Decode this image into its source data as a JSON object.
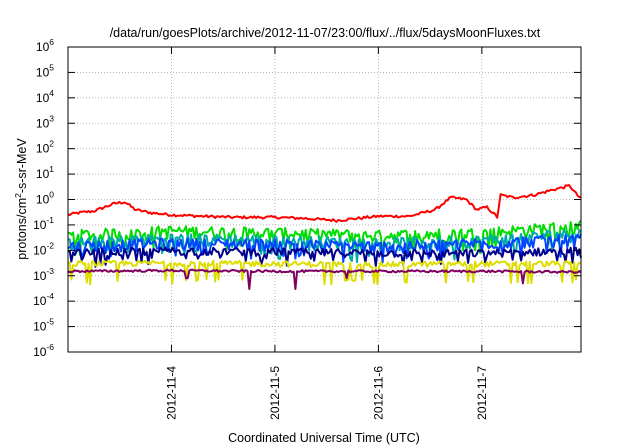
{
  "chart_data": {
    "type": "line",
    "title": "/data/run/goesPlots/archive/2012-11-07/23:00/flux/../flux/5daysMoonFluxes.txt",
    "xlabel": "Coordinated Universal Time (UTC)",
    "ylabel": "protons/cm2-s-sr-MeV",
    "ylabel_parts": {
      "pre": "protons/cm",
      "sup": "2",
      "post": "-s-sr-MeV"
    },
    "x_range": [
      "2012-11-03T00:00",
      "2012-11-07T23:00"
    ],
    "x_ticks": [
      "2012-11-4",
      "2012-11-5",
      "2012-11-6",
      "2012-11-7"
    ],
    "y_scale": "log",
    "ylim": [
      1e-06,
      1000000.0
    ],
    "y_tick_exponents": [
      -6,
      -5,
      -4,
      -3,
      -2,
      -1,
      0,
      1,
      2,
      3,
      4,
      5,
      6
    ],
    "y_tick_base": "10",
    "grid": true,
    "series": [
      {
        "color": "#ff0000",
        "anchors": [
          [
            0,
            0.25
          ],
          [
            0.1,
            0.3
          ],
          [
            0.25,
            0.35
          ],
          [
            0.45,
            0.7
          ],
          [
            0.55,
            0.8
          ],
          [
            0.65,
            0.4
          ],
          [
            0.8,
            0.3
          ],
          [
            1.0,
            0.25
          ],
          [
            1.3,
            0.22
          ],
          [
            1.6,
            0.2
          ],
          [
            2.0,
            0.2
          ],
          [
            2.3,
            0.18
          ],
          [
            2.6,
            0.15
          ],
          [
            3.0,
            0.22
          ],
          [
            3.3,
            0.22
          ],
          [
            3.55,
            0.4
          ],
          [
            3.7,
            1.2
          ],
          [
            3.85,
            1.0
          ],
          [
            3.95,
            0.4
          ],
          [
            4.05,
            0.5
          ],
          [
            4.15,
            0.2
          ],
          [
            4.18,
            1.5
          ],
          [
            4.3,
            1.2
          ],
          [
            4.5,
            1.5
          ],
          [
            4.7,
            2.5
          ],
          [
            4.85,
            3.5
          ],
          [
            4.92,
            1.5
          ],
          [
            5.0,
            0.8
          ]
        ],
        "noise": 0.12
      },
      {
        "color": "#00dd00",
        "anchors": [
          [
            0,
            0.04
          ],
          [
            1,
            0.06
          ],
          [
            2,
            0.05
          ],
          [
            3,
            0.04
          ],
          [
            4,
            0.05
          ],
          [
            5,
            0.1
          ]
        ],
        "noise": 0.55,
        "spike_down": 0.35
      },
      {
        "color": "#00aaaa",
        "anchors": [
          [
            0,
            0.02
          ],
          [
            1,
            0.03
          ],
          [
            2,
            0.025
          ],
          [
            3,
            0.02
          ],
          [
            4,
            0.025
          ],
          [
            5,
            0.05
          ]
        ],
        "noise": 0.55,
        "spike_down": 0.35
      },
      {
        "color": "#0044ff",
        "anchors": [
          [
            0,
            0.015
          ],
          [
            1,
            0.02
          ],
          [
            2,
            0.018
          ],
          [
            3,
            0.015
          ],
          [
            4,
            0.02
          ],
          [
            5,
            0.03
          ]
        ],
        "noise": 0.5,
        "spike_down": 0.4
      },
      {
        "color": "#00008b",
        "anchors": [
          [
            0,
            0.008
          ],
          [
            1,
            0.01
          ],
          [
            2,
            0.009
          ],
          [
            3,
            0.008
          ],
          [
            4,
            0.008
          ],
          [
            5,
            0.01
          ]
        ],
        "noise": 0.35,
        "spike_down": 0.4
      },
      {
        "color": "#dddd00",
        "anchors": [
          [
            0,
            0.003
          ],
          [
            1,
            0.0032
          ],
          [
            2,
            0.003
          ],
          [
            3,
            0.0028
          ],
          [
            4,
            0.003
          ],
          [
            5,
            0.003
          ]
        ],
        "noise": 0.25,
        "spike_down": 0.2
      },
      {
        "color": "#800060",
        "anchors": [
          [
            0,
            0.0015
          ],
          [
            1,
            0.0016
          ],
          [
            2,
            0.0015
          ],
          [
            3,
            0.0015
          ],
          [
            4,
            0.0015
          ],
          [
            5,
            0.0014
          ]
        ],
        "noise": 0.1,
        "dips": [
          [
            1.15,
            0.0008
          ],
          [
            1.75,
            0.0003
          ],
          [
            2.2,
            0.0003
          ],
          [
            2.7,
            0.0008
          ],
          [
            4.4,
            0.0005
          ]
        ]
      }
    ]
  }
}
